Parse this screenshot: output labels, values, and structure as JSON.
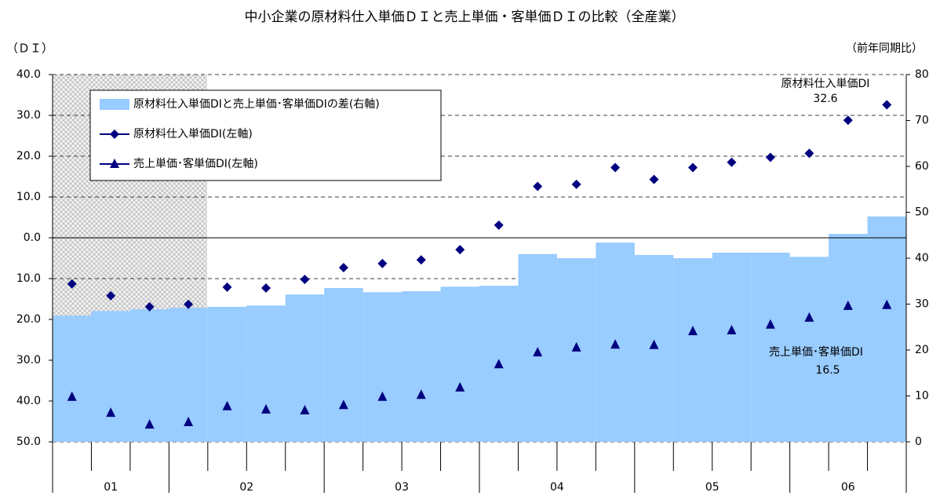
{
  "chart_data": {
    "type": "bar-line",
    "title": "中小企業の原材料仕入単価ＤＩと売上単価・客単価ＤＩの比較（全産業）",
    "y_label": "（ＤＩ）",
    "y2_label": "（前年同期比）",
    "categories": [
      "01",
      null,
      null,
      "02",
      null,
      null,
      null,
      "03",
      null,
      null,
      null,
      "04",
      null,
      null,
      null,
      "05",
      null,
      null,
      null,
      "06",
      null,
      null
    ],
    "series": [
      {
        "name": "原材料仕入単価DIと売上単価･客単価DIの差(右軸)",
        "type": "bar",
        "axis": "y2",
        "color": "#99ccff",
        "values": [
          27.5,
          28.5,
          28.9,
          29.2,
          29.4,
          29.7,
          32.1,
          33.5,
          32.6,
          32.8,
          33.8,
          34.0,
          40.9,
          40.0,
          43.4,
          40.7,
          40.0,
          41.2,
          41.2,
          40.3,
          45.3,
          49.1
        ]
      },
      {
        "name": "原材料仕入単価DI(左軸)",
        "type": "line",
        "marker": "diamond",
        "color": "#000080",
        "values": [
          -11.3,
          -14.2,
          -16.9,
          -16.3,
          -12.1,
          -12.3,
          -10.2,
          -7.3,
          -6.3,
          -5.4,
          -2.9,
          3.1,
          12.6,
          13.1,
          17.2,
          14.3,
          17.2,
          18.5,
          19.7,
          20.7,
          28.8,
          32.6
        ]
      },
      {
        "name": "売上単価･客単価DI(左軸)",
        "type": "line",
        "marker": "triangle",
        "color": "#000080",
        "values": [
          -39.0,
          -42.9,
          -45.8,
          -45.2,
          -41.3,
          -42.1,
          -42.3,
          -41.0,
          -39.0,
          -38.5,
          -36.7,
          -31.0,
          -28.1,
          -26.9,
          -26.2,
          -26.3,
          -22.9,
          -22.7,
          -21.3,
          -19.6,
          -16.7,
          -16.5
        ]
      }
    ],
    "annotations": [
      {
        "label": "原材料仕入単価DI",
        "value_label": "32.6"
      },
      {
        "label": "売上単価･客単価DI",
        "value_label": "16.5"
      }
    ],
    "ylim": [
      -50,
      40
    ],
    "yticks": [
      {
        "value": 40,
        "label": "40.0"
      },
      {
        "value": 30,
        "label": "30.0"
      },
      {
        "value": 20,
        "label": "20.0"
      },
      {
        "value": 10,
        "label": "10.0"
      },
      {
        "value": 0,
        "label": "0.0"
      },
      {
        "value": -10,
        "label": "10.0"
      },
      {
        "value": -20,
        "label": "20.0"
      },
      {
        "value": -30,
        "label": "30.0"
      },
      {
        "value": -40,
        "label": "40.0"
      },
      {
        "value": -50,
        "label": "50.0"
      }
    ],
    "y2lim": [
      0,
      80
    ],
    "y2ticks": [
      0,
      10,
      20,
      30,
      40,
      50,
      60,
      70,
      80
    ],
    "grid": true,
    "legend": "upper left"
  }
}
